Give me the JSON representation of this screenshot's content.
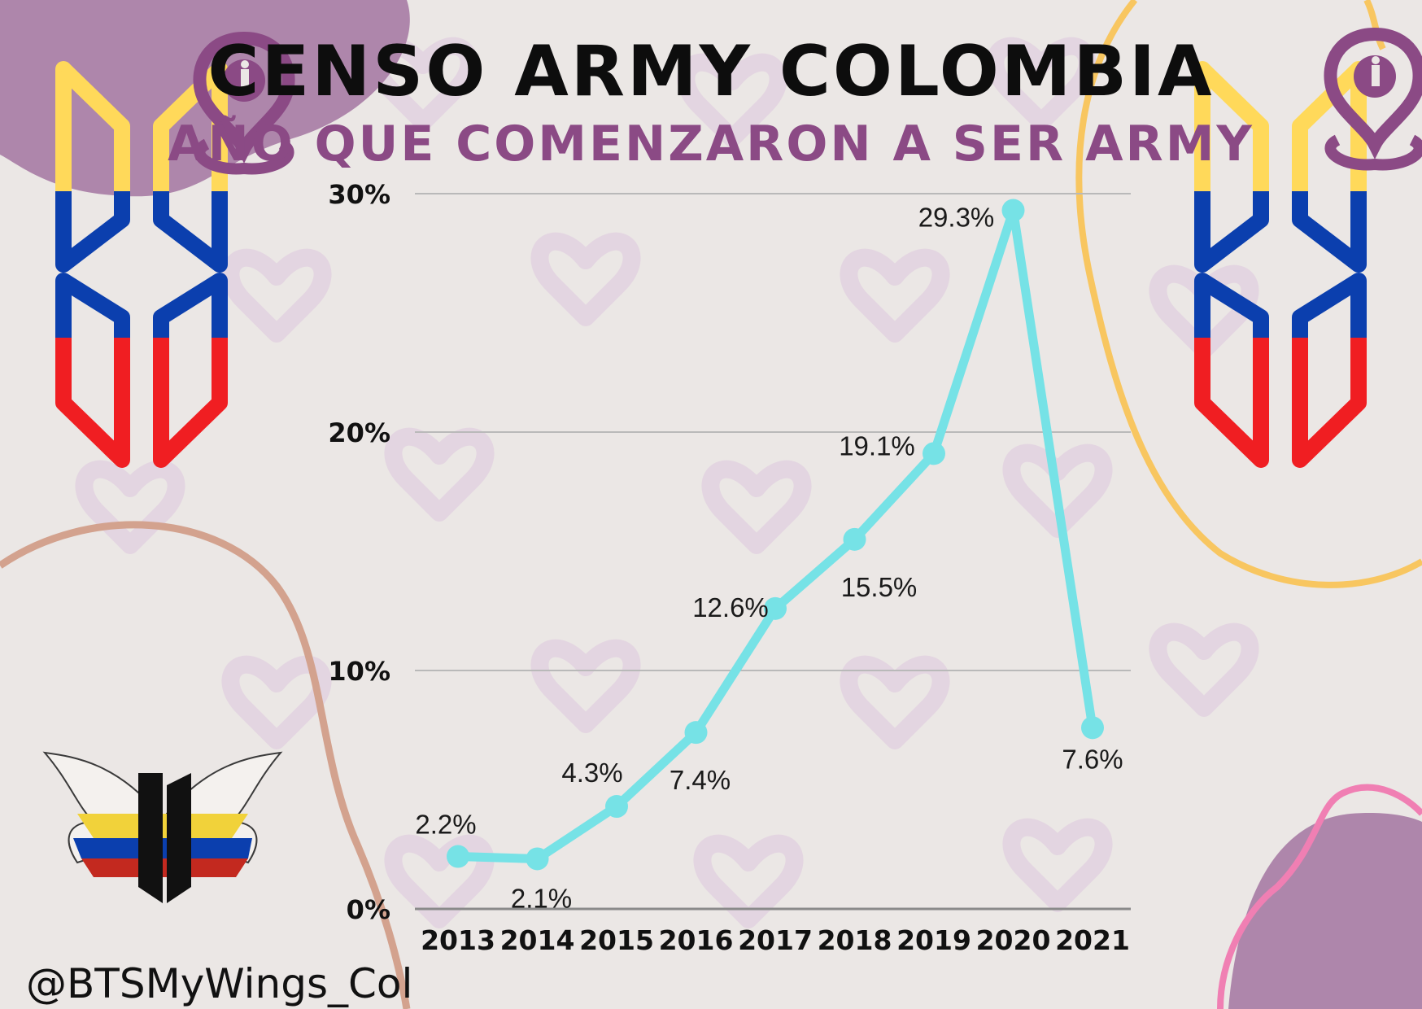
{
  "header": {
    "title": "CENSO ARMY COLOMBIA",
    "subtitle": "AÑO QUE COMENZARON A SER ARMY"
  },
  "footer": {
    "handle": "@BTSMyWings_Col"
  },
  "colors": {
    "line": "#76e2e6",
    "title": "#0d0d0d",
    "subtitle": "#8b4a85",
    "flag_yellow": "#ffd95a",
    "flag_blue": "#0b3fae",
    "flag_red": "#f01e22"
  },
  "chart_data": {
    "type": "line",
    "categories": [
      "2013",
      "2014",
      "2015",
      "2016",
      "2017",
      "2018",
      "2019",
      "2020",
      "2021"
    ],
    "values": [
      2.2,
      2.1,
      4.3,
      7.4,
      12.6,
      15.5,
      19.1,
      29.3,
      7.6
    ],
    "data_labels": [
      "2.2%",
      "2.1%",
      "4.3%",
      "7.4%",
      "12.6%",
      "15.5%",
      "19.1%",
      "29.3%",
      "7.6%"
    ],
    "y_ticks": [
      0,
      10,
      20,
      30
    ],
    "y_tick_labels": [
      "0%",
      "10%",
      "20%",
      "30%"
    ],
    "ylim": [
      0,
      30
    ],
    "grid": true,
    "legend": "none"
  }
}
